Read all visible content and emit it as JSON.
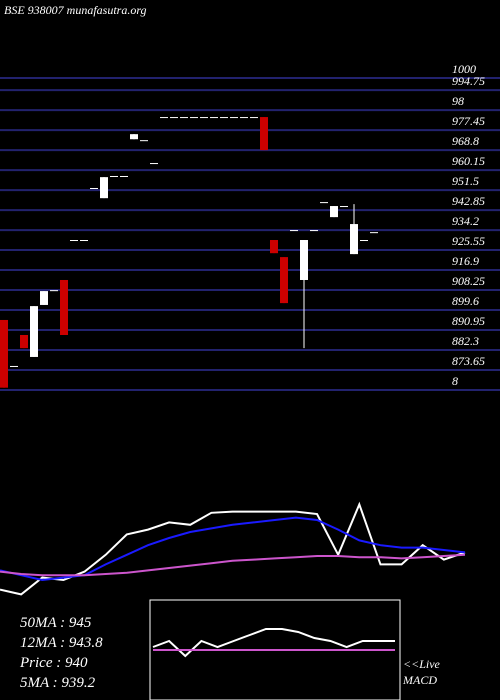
{
  "chart_data": [
    {
      "type": "candlestick",
      "title": "BSE 938007 munafasutra.org",
      "ylim": [
        865,
        1000
      ],
      "yticks": [
        1000,
        994.75,
        {
          "value": 986.1,
          "label": "98"
        },
        977.45,
        968.8,
        960.15,
        951.5,
        942.85,
        934.2,
        925.55,
        916.9,
        908.25,
        899.6,
        890.95,
        882.3,
        873.65,
        {
          "value": 865,
          "label": "8"
        }
      ],
      "grid": true,
      "up_color": "#ffffff",
      "down_color": "#cc0000",
      "grid_color": "#22226e",
      "open": [
        895.3,
        875.4,
        888.8,
        879.3,
        901.8,
        908.2,
        912.6,
        929.9,
        929.9,
        952.4,
        948,
        957.6,
        957.6,
        973.5,
        973.1,
        963.2,
        983.1,
        983.1,
        983.1,
        983.1,
        983.1,
        983.1,
        983.1,
        983.1,
        983.1,
        983.1,
        983.1,
        929.9,
        922.5,
        934.2,
        912.6,
        934.2,
        946.3,
        939.8,
        944.6,
        923.8,
        929.9,
        933.3
      ],
      "high": [
        895.3,
        875.4,
        888.8,
        901.3,
        907.8,
        908.2,
        912.6,
        929.9,
        929.9,
        952.4,
        957.1,
        957.6,
        957.6,
        975.7,
        973.1,
        963.2,
        983.1,
        983.1,
        983.1,
        983.1,
        983.1,
        983.1,
        983.1,
        983.1,
        983.1,
        983.1,
        983.1,
        929.9,
        922.5,
        934.2,
        929.9,
        934.2,
        946.3,
        944.6,
        944.6,
        945.4,
        929.9,
        933.3
      ],
      "low": [
        866,
        875.4,
        883.1,
        879.3,
        901.8,
        908.2,
        888.8,
        929.9,
        929.9,
        952.4,
        948,
        957.6,
        957.6,
        973.5,
        973.1,
        963.2,
        983.1,
        983.1,
        983.1,
        983.1,
        983.1,
        983.1,
        983.1,
        983.1,
        983.1,
        983.1,
        968.8,
        924.2,
        902.6,
        934.2,
        883.1,
        934.2,
        946.3,
        939.8,
        944.6,
        923.8,
        929.9,
        933.3
      ],
      "close": [
        866,
        875.4,
        883.1,
        901.3,
        907.8,
        908.2,
        888.8,
        929.9,
        929.9,
        952.4,
        957.1,
        957.6,
        957.6,
        975.7,
        973.1,
        963.2,
        983.1,
        983.1,
        983.1,
        983.1,
        983.1,
        983.1,
        983.1,
        983.1,
        983.1,
        983.1,
        968.8,
        924.2,
        902.6,
        934.2,
        929.9,
        934.2,
        946.3,
        944.6,
        944.6,
        936.8,
        929.9,
        933.3
      ]
    },
    {
      "type": "line",
      "ylim": [
        0,
        100
      ],
      "series": [
        {
          "color": "#ffffff",
          "values": [
            17,
            13,
            27,
            25,
            32,
            46,
            63,
            67,
            73,
            71,
            81,
            82,
            82,
            82,
            82,
            80,
            46,
            88,
            38,
            38,
            54,
            42,
            48
          ]
        },
        {
          "color": "#1a1aff",
          "values": [
            33,
            29,
            25,
            27,
            29,
            38,
            46,
            54,
            60,
            65,
            68,
            71,
            73,
            75,
            77,
            75,
            67,
            58,
            54,
            52,
            52,
            50,
            48
          ]
        },
        {
          "color": "#cc55cc",
          "values": [
            32,
            30,
            29,
            29,
            29,
            30,
            31,
            33,
            35,
            37,
            39,
            41,
            42,
            43,
            44,
            45,
            45,
            44,
            44,
            43,
            44,
            45,
            46
          ]
        }
      ],
      "info": [
        "50MA : 945",
        "12MA : 943.8",
        "Price  : 940",
        "5MA : 939.2"
      ]
    },
    {
      "type": "line",
      "title": "<<Live",
      "subtitle": "MACD",
      "ylim": [
        -1,
        1
      ],
      "series": [
        {
          "color": "#ffffff",
          "values": [
            0.1,
            0.3,
            -0.2,
            0.3,
            0.1,
            0.3,
            0.5,
            0.7,
            0.7,
            0.6,
            0.4,
            0.3,
            0.1,
            0.3,
            0.3,
            0.3
          ]
        },
        {
          "color": "#cc55cc",
          "values": [
            0,
            0,
            0,
            0,
            0,
            0,
            0,
            0,
            0,
            0,
            0,
            0,
            0,
            0,
            0,
            0
          ]
        }
      ]
    }
  ]
}
